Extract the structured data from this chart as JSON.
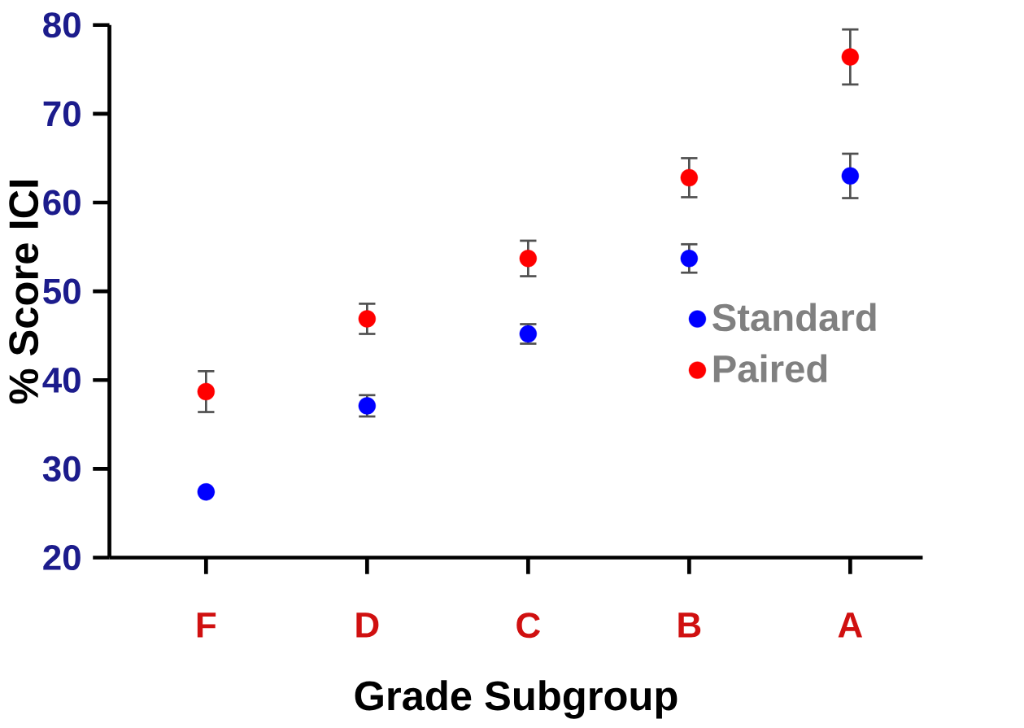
{
  "chart_data": {
    "type": "scatter",
    "xlabel": "Grade Subgroup",
    "ylabel": "% Score ICI",
    "categories": [
      "F",
      "D",
      "C",
      "B",
      "A"
    ],
    "series": [
      {
        "name": "Standard",
        "color": "#0000ff",
        "values": [
          27.4,
          37.1,
          45.2,
          53.7,
          63.0
        ],
        "errors": [
          null,
          1.2,
          1.1,
          1.6,
          2.5
        ]
      },
      {
        "name": "Paired",
        "color": "#ff0000",
        "values": [
          38.7,
          46.9,
          53.7,
          62.8,
          76.4
        ],
        "errors": [
          2.3,
          1.7,
          2.0,
          2.2,
          3.1
        ]
      }
    ],
    "ylim": [
      20,
      80
    ],
    "yticks": [
      20,
      30,
      40,
      50,
      60,
      70,
      80
    ],
    "grid": false,
    "legend": "right",
    "marker": "circle"
  }
}
